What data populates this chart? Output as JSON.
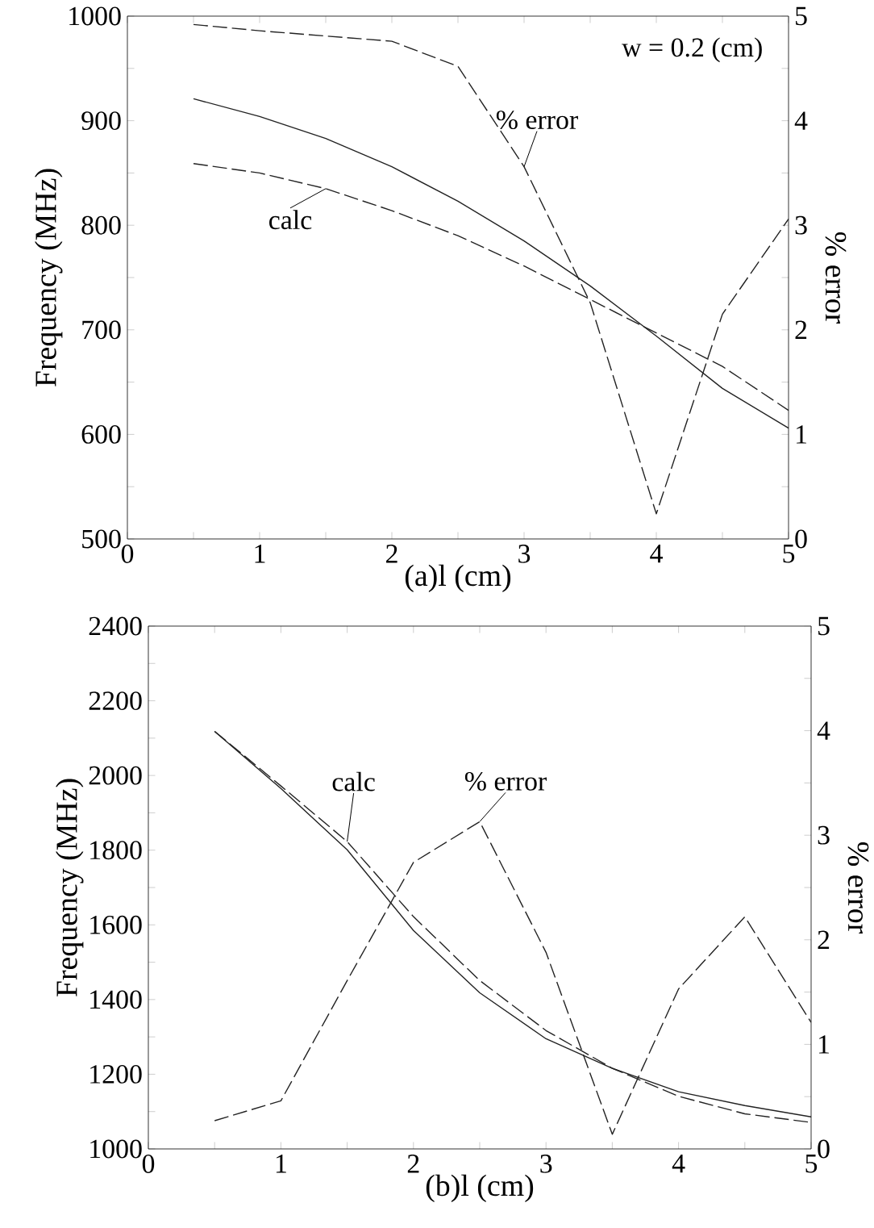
{
  "chart_data": [
    {
      "type": "line",
      "xlabel": "(a)l (cm)",
      "ylabel": "Frequency (MHz)",
      "y2label": "% error",
      "annotations": [
        "w = 0.2 (cm)"
      ],
      "x": [
        0.5,
        1,
        1.5,
        2,
        2.5,
        3,
        3.5,
        4,
        4.5,
        5
      ],
      "series": [
        {
          "color": "#222222",
          "line_style": "solid",
          "values": [
            921,
            904,
            883,
            856,
            823,
            785,
            742,
            694,
            644,
            606
          ]
        },
        {
          "name": "calc",
          "color": "#222222",
          "line_style": "dashed",
          "values": [
            859,
            850,
            835,
            814,
            790,
            761,
            729,
            697,
            665,
            623
          ]
        },
        {
          "name": "% error",
          "color": "#222222",
          "line_style": "dashed",
          "axis": "y2",
          "values": [
            4.92,
            4.86,
            4.81,
            4.76,
            4.52,
            3.56,
            2.26,
            0.24,
            2.15,
            3.06
          ]
        }
      ],
      "xlim": [
        0,
        5
      ],
      "xticks": [
        0,
        {
          "value": 0.5,
          "label": null
        },
        1,
        {
          "value": 1.5,
          "label": null
        },
        2,
        {
          "value": 2.5,
          "label": null
        },
        3,
        {
          "value": 3.5,
          "label": null
        },
        4,
        {
          "value": 4.5,
          "label": null
        },
        5
      ],
      "ylim": [
        500,
        1000
      ],
      "yticks": [
        500,
        {
          "value": 550,
          "label": null
        },
        600,
        {
          "value": 650,
          "label": null
        },
        700,
        {
          "value": 750,
          "label": null
        },
        800,
        {
          "value": 850,
          "label": null
        },
        900,
        {
          "value": 950,
          "label": null
        },
        1000
      ],
      "y2lim": [
        0,
        5
      ],
      "y2ticks": [
        0,
        {
          "value": 0.5,
          "label": null
        },
        1,
        {
          "value": 1.5,
          "label": null
        },
        2,
        {
          "value": 2.5,
          "label": null
        },
        3,
        {
          "value": 3.5,
          "label": null
        },
        4,
        {
          "value": 4.5,
          "label": null
        },
        5
      ],
      "grid": false
    },
    {
      "type": "line",
      "xlabel": "(b)l (cm)",
      "ylabel": "Frequency (MHz)",
      "y2label": "% error",
      "x": [
        0.5,
        1,
        1.5,
        2,
        2.5,
        3,
        3.5,
        4,
        4.5,
        5
      ],
      "series": [
        {
          "color": "#222222",
          "line_style": "solid",
          "values": [
            2118,
            1965,
            1801,
            1585,
            1418,
            1295,
            1216,
            1153,
            1116,
            1086
          ]
        },
        {
          "name": "calc",
          "color": "#222222",
          "line_style": "dashed",
          "values": [
            2118,
            1972,
            1823,
            1622,
            1451,
            1317,
            1216,
            1141,
            1094,
            1071
          ]
        },
        {
          "name": "% error",
          "color": "#222222",
          "line_style": "dashed",
          "axis": "y2",
          "values": [
            0.27,
            0.46,
            1.61,
            2.74,
            3.13,
            1.88,
            0.14,
            1.53,
            2.22,
            1.21
          ]
        }
      ],
      "xlim": [
        0,
        5
      ],
      "xticks": [
        0,
        {
          "value": 0.5,
          "label": null
        },
        1,
        {
          "value": 1.5,
          "label": null
        },
        2,
        {
          "value": 2.5,
          "label": null
        },
        3,
        {
          "value": 3.5,
          "label": null
        },
        4,
        {
          "value": 4.5,
          "label": null
        },
        5
      ],
      "ylim": [
        1000,
        2400
      ],
      "yticks": [
        1000,
        {
          "value": 1100,
          "label": null
        },
        1200,
        {
          "value": 1300,
          "label": null
        },
        1400,
        {
          "value": 1500,
          "label": null
        },
        1600,
        {
          "value": 1700,
          "label": null
        },
        1800,
        {
          "value": 1900,
          "label": null
        },
        2000,
        {
          "value": 2100,
          "label": null
        },
        2200,
        {
          "value": 2300,
          "label": null
        },
        2400
      ],
      "y2lim": [
        0,
        5
      ],
      "y2ticks": [
        0,
        {
          "value": 0.5,
          "label": null
        },
        1,
        {
          "value": 1.5,
          "label": null
        },
        2,
        {
          "value": 2.5,
          "label": null
        },
        3,
        {
          "value": 3.5,
          "label": null
        },
        4,
        {
          "value": 4.5,
          "label": null
        },
        5
      ],
      "grid": false
    }
  ]
}
